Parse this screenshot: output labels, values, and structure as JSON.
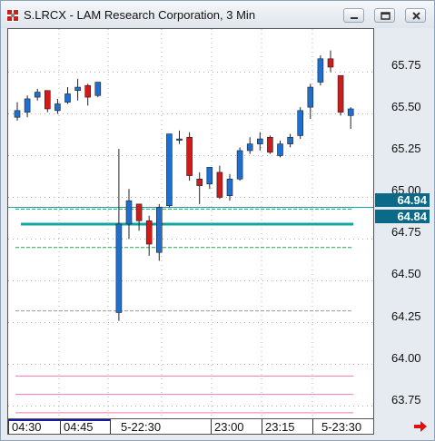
{
  "window": {
    "title": "S.LRCX - LAM Research Corporation, 3 Min",
    "buttons": [
      "minimize",
      "restore",
      "close"
    ]
  },
  "colors": {
    "up_candle": "#1f6fd1",
    "down_candle": "#d11a1a",
    "tag_bg": "#0b6a87",
    "line_teal": "#13a5a5",
    "line_green_dashed": "#1aa84a",
    "line_gray_dashed": "#9a9a9a",
    "line_pink": "#f07ab4",
    "grid_dots": "#b0b0b0"
  },
  "y_axis": {
    "labels": [
      "65.75",
      "65.50",
      "65.25",
      "65.00",
      "64.75",
      "64.50",
      "64.25",
      "64.00",
      "63.75"
    ]
  },
  "price_tags": [
    {
      "value": "64.94"
    },
    {
      "value": "64.84"
    }
  ],
  "x_axis": {
    "labels": [
      "04:30",
      "04:45",
      "5-22:30",
      "23:00",
      "23:15",
      "5-23:30"
    ]
  },
  "chart_data": {
    "type": "candlestick",
    "title": "S.LRCX - LAM Research Corporation, 3 Min",
    "ylim": [
      63.6,
      65.95
    ],
    "x_labels": [
      "04:30",
      "04:45",
      "5-22:30",
      "23:00",
      "23:15",
      "5-23:30"
    ],
    "candles": [
      {
        "o": 65.48,
        "h": 65.57,
        "l": 65.46,
        "c": 65.52
      },
      {
        "o": 65.51,
        "h": 65.61,
        "l": 65.48,
        "c": 65.59
      },
      {
        "o": 65.6,
        "h": 65.65,
        "l": 65.58,
        "c": 65.63
      },
      {
        "o": 65.64,
        "h": 65.64,
        "l": 65.51,
        "c": 65.53
      },
      {
        "o": 65.52,
        "h": 65.59,
        "l": 65.5,
        "c": 65.56
      },
      {
        "o": 65.57,
        "h": 65.66,
        "l": 65.56,
        "c": 65.62
      },
      {
        "o": 65.64,
        "h": 65.71,
        "l": 65.58,
        "c": 65.66
      },
      {
        "o": 65.67,
        "h": 65.68,
        "l": 65.55,
        "c": 65.6
      },
      {
        "o": 65.61,
        "h": 65.69,
        "l": 65.6,
        "c": 65.69
      },
      {
        "o": 64.31,
        "h": 65.29,
        "l": 64.26,
        "c": 64.84
      },
      {
        "o": 64.84,
        "h": 65.05,
        "l": 64.75,
        "c": 64.98
      },
      {
        "o": 64.96,
        "h": 64.96,
        "l": 64.8,
        "c": 64.86
      },
      {
        "o": 64.86,
        "h": 64.89,
        "l": 64.65,
        "c": 64.72
      },
      {
        "o": 64.67,
        "h": 64.96,
        "l": 64.62,
        "c": 64.94
      },
      {
        "o": 64.95,
        "h": 65.38,
        "l": 64.94,
        "c": 65.38
      },
      {
        "o": 65.35,
        "h": 65.4,
        "l": 65.32,
        "c": 65.35
      },
      {
        "o": 65.36,
        "h": 65.39,
        "l": 65.1,
        "c": 65.13
      },
      {
        "o": 65.11,
        "h": 65.15,
        "l": 64.96,
        "c": 65.07
      },
      {
        "o": 65.08,
        "h": 65.18,
        "l": 65.05,
        "c": 65.18
      },
      {
        "o": 65.15,
        "h": 65.19,
        "l": 64.99,
        "c": 65.0
      },
      {
        "o": 65.01,
        "h": 65.14,
        "l": 64.98,
        "c": 65.11
      },
      {
        "o": 65.11,
        "h": 65.3,
        "l": 65.1,
        "c": 65.28
      },
      {
        "o": 65.28,
        "h": 65.36,
        "l": 65.26,
        "c": 65.32
      },
      {
        "o": 65.32,
        "h": 65.39,
        "l": 65.28,
        "c": 65.35
      },
      {
        "o": 65.36,
        "h": 65.37,
        "l": 65.26,
        "c": 65.27
      },
      {
        "o": 65.25,
        "h": 65.34,
        "l": 65.24,
        "c": 65.32
      },
      {
        "o": 65.32,
        "h": 65.38,
        "l": 65.3,
        "c": 65.36
      },
      {
        "o": 65.37,
        "h": 65.54,
        "l": 65.35,
        "c": 65.52
      },
      {
        "o": 65.54,
        "h": 65.68,
        "l": 65.47,
        "c": 65.66
      },
      {
        "o": 65.69,
        "h": 65.85,
        "l": 65.67,
        "c": 65.83
      },
      {
        "o": 65.83,
        "h": 65.88,
        "l": 65.75,
        "c": 65.78
      },
      {
        "o": 65.73,
        "h": 65.73,
        "l": 65.49,
        "c": 65.51
      },
      {
        "o": 65.49,
        "h": 65.54,
        "l": 65.41,
        "c": 65.53
      }
    ],
    "levels": [
      {
        "price": 64.94,
        "style": "solid",
        "color": "teal"
      },
      {
        "price": 64.84,
        "style": "thick",
        "color": "teal"
      },
      {
        "price": 64.93,
        "style": "dashed",
        "color": "green"
      },
      {
        "price": 64.7,
        "style": "dashed",
        "color": "green"
      },
      {
        "price": 64.32,
        "style": "dashed",
        "color": "gray"
      },
      {
        "price": 63.93,
        "style": "solid",
        "color": "pink"
      },
      {
        "price": 63.82,
        "style": "solid",
        "color": "pink"
      },
      {
        "price": 63.71,
        "style": "solid",
        "color": "pink"
      }
    ],
    "grid": true
  }
}
